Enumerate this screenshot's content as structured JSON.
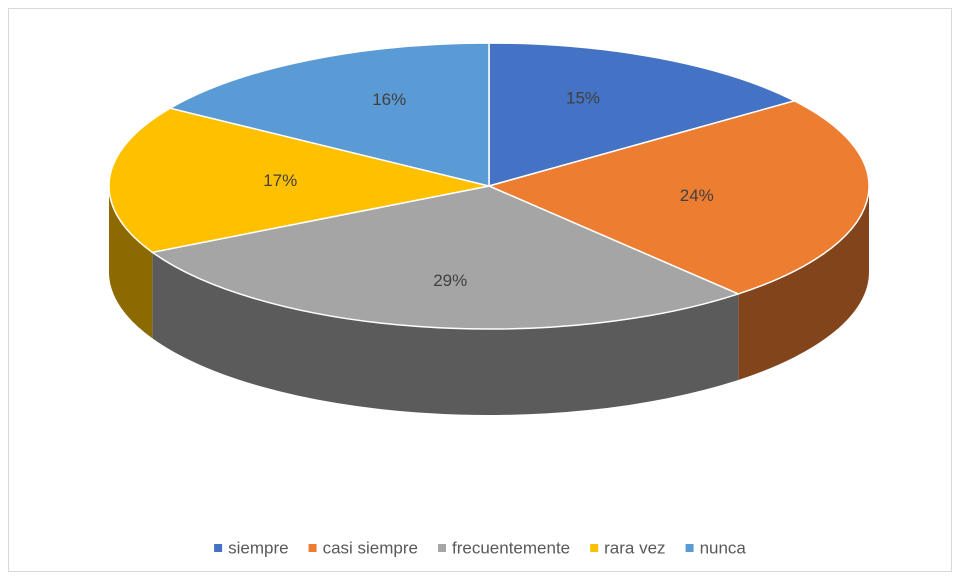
{
  "chart_data": {
    "type": "pie",
    "categories": [
      "siempre",
      "casi siempre",
      "frecuentemente",
      "rara vez",
      "nunca"
    ],
    "values": [
      15,
      24,
      29,
      17,
      16
    ],
    "value_labels": [
      "15%",
      "24%",
      "29%",
      "17%",
      "16%"
    ],
    "colors": [
      "#4472c4",
      "#ed7d31",
      "#a5a5a5",
      "#ffc000",
      "#5b9bd5"
    ],
    "legend": "bottom"
  }
}
